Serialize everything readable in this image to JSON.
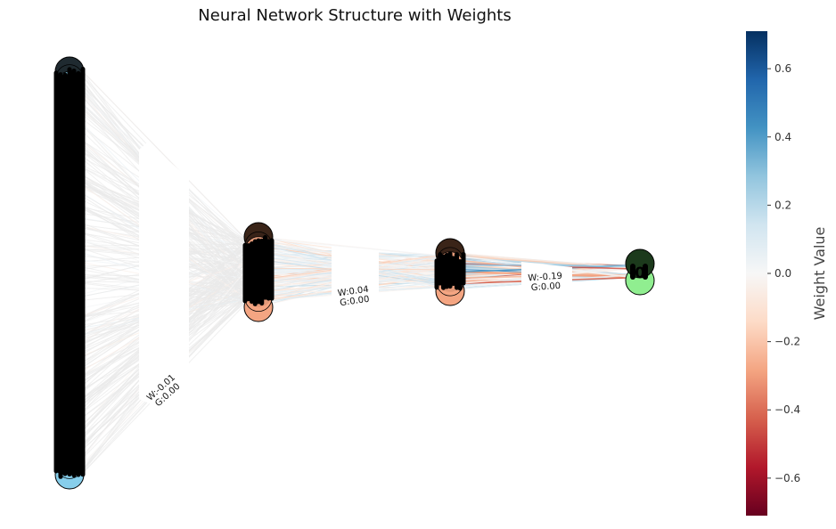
{
  "title": "Neural Network Structure with Weights",
  "colorbar": {
    "label": "Weight Value",
    "min": -0.71,
    "max": 0.71,
    "ticks": [
      "0.6",
      "0.4",
      "0.2",
      "0.0",
      "−0.2",
      "−0.4",
      "−0.6"
    ],
    "tick_values": [
      0.6,
      0.4,
      0.2,
      0.0,
      -0.2,
      -0.4,
      -0.6
    ],
    "colormap": "RdBu",
    "colors": [
      "#67001f",
      "#b2182b",
      "#d6604d",
      "#f4a582",
      "#fddbc7",
      "#f7f7f7",
      "#d1e5f0",
      "#92c5de",
      "#4393c3",
      "#2166ac",
      "#053061"
    ]
  },
  "layers": [
    {
      "name": "input",
      "color_top": "#1f2a30",
      "color_bottom": "#87ceeb"
    },
    {
      "name": "hidden1",
      "color_top": "#3a2418",
      "color_bottom": "#f4a582"
    },
    {
      "name": "hidden2",
      "color_top": "#3a2418",
      "color_bottom": "#f4a582"
    },
    {
      "name": "output",
      "color_top": "#1c3a1c",
      "color_bottom": "#90ee90"
    }
  ],
  "edge_labels": [
    {
      "w": "W:-0.01",
      "g": "G:0.00"
    },
    {
      "w": "W:0.04",
      "g": "G:0.00"
    },
    {
      "w": "W:-0.19",
      "g": "G:0.00"
    }
  ],
  "output_node_label": "0"
}
